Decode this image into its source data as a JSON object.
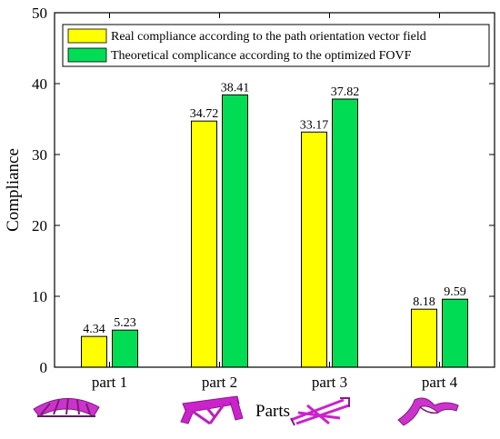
{
  "chart_data": {
    "type": "bar",
    "categories": [
      "part 1",
      "part 2",
      "part 3",
      "part 4"
    ],
    "series": [
      {
        "name": "Real compliance according to the path orientation vector field",
        "values": [
          4.34,
          34.72,
          33.17,
          8.18
        ],
        "color": "#ffff00"
      },
      {
        "name": "Theoretical complicance according to the optimized FOVF",
        "values": [
          5.23,
          38.41,
          37.82,
          9.59
        ],
        "color": "#00dd55"
      }
    ],
    "data_labels": [
      [
        "4.34",
        "34.72",
        "33.17",
        "8.18"
      ],
      [
        "5.23",
        "38.41",
        "37.82",
        "9.59"
      ]
    ],
    "xlabel": "Parts",
    "ylabel": "Compliance",
    "ylim": [
      0,
      50
    ],
    "yticks": [
      0,
      10,
      20,
      30,
      40,
      50
    ],
    "grid": false,
    "legend_position": "top-right",
    "part_thumbnails": [
      "part-1-thumbnail",
      "part-2-thumbnail",
      "part-3-thumbnail",
      "part-4-thumbnail"
    ]
  }
}
